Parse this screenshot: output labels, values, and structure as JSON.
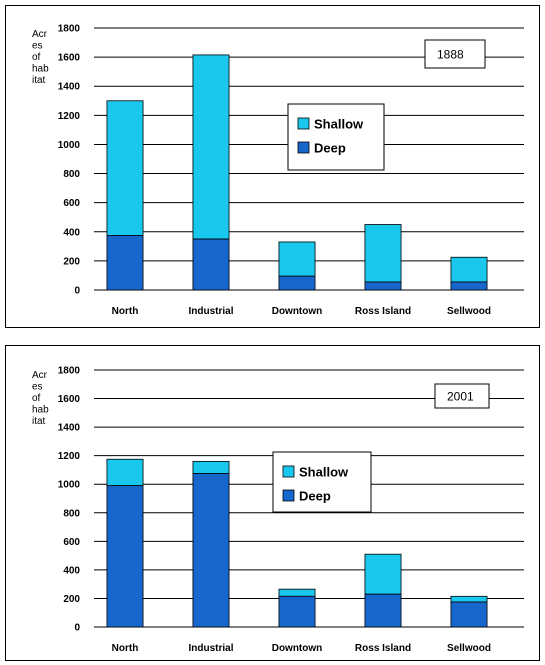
{
  "colors": {
    "shallow": "#1ac8ee",
    "deep": "#1666cc",
    "grid": "#000000"
  },
  "chart_data": [
    {
      "type": "bar",
      "stacked": true,
      "title": "1888",
      "ylabel_lines": [
        "Acr",
        "es",
        "of",
        "hab",
        "itat"
      ],
      "categories": [
        "North",
        "Industrial",
        "Downtown",
        "Ross Island",
        "Sellwood"
      ],
      "series": [
        {
          "name": "Deep",
          "values": [
            375,
            350,
            95,
            55,
            55
          ]
        },
        {
          "name": "Shallow",
          "values": [
            925,
            1265,
            235,
            395,
            170
          ]
        }
      ],
      "ylim": [
        0,
        1800
      ],
      "yticks": [
        0,
        200,
        400,
        600,
        800,
        1000,
        1200,
        1400,
        1600,
        1800
      ],
      "grid": true,
      "legend_order": [
        "Shallow",
        "Deep"
      ]
    },
    {
      "type": "bar",
      "stacked": true,
      "title": "2001",
      "ylabel_lines": [
        "Acr",
        "es",
        "of",
        "hab",
        "itat"
      ],
      "categories": [
        "North",
        "Industrial",
        "Downtown",
        "Ross Island",
        "Sellwood"
      ],
      "series": [
        {
          "name": "Deep",
          "values": [
            990,
            1075,
            215,
            230,
            175
          ]
        },
        {
          "name": "Shallow",
          "values": [
            185,
            85,
            50,
            280,
            40
          ]
        }
      ],
      "ylim": [
        0,
        1800
      ],
      "yticks": [
        0,
        200,
        400,
        600,
        800,
        1000,
        1200,
        1400,
        1600,
        1800
      ],
      "grid": true,
      "legend_order": [
        "Shallow",
        "Deep"
      ]
    }
  ]
}
